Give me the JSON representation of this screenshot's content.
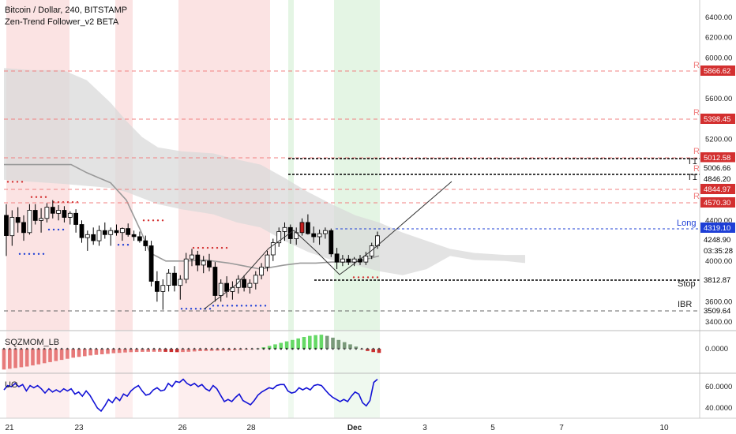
{
  "header": {
    "title": "Bitcoin / Dollar, 240, BITSTAMP",
    "indicator": "Zen-Trend Follower_v2 BETA"
  },
  "colors": {
    "up_candle": "#ffffff",
    "down_candle": "#000000",
    "up_candle_highlight": "#1a7a1a",
    "down_candle_highlight": "#c41e1e",
    "cloud": "#d9d9d9",
    "resistance_line": "#f08080",
    "resistance_badge": "#d32f2f",
    "long_line": "#1e3fd6",
    "stop_line": "#000000",
    "uo_line": "#1212d6",
    "mom_positive": "#7fe07f",
    "mom_negative": "#e05050",
    "red_zone": "#fbe3e3",
    "green_zone": "#e4f5e4"
  },
  "chart_data": [
    {
      "type": "candlestick",
      "title": "Bitcoin / Dollar, 240, BITSTAMP",
      "y_axis": {
        "ylim": [
          3300,
          6700
        ],
        "ticks": [
          6400,
          6200,
          6000,
          5800,
          5600,
          5400,
          5200,
          5000,
          4800,
          4600,
          4400,
          4200,
          4000,
          3800,
          3600,
          3400
        ],
        "tick_labels": [
          "6400.00",
          "6200.00",
          "6000.00",
          "5800.00",
          "5600.00",
          "5400.00",
          "5200.00",
          "5000.00",
          "4800.00",
          "4600.00",
          "4400.00",
          "4200.00",
          "4000.00",
          "3800.00",
          "3600.00",
          "3400.00"
        ]
      },
      "x_axis": {
        "tick_labels": [
          "21",
          "23",
          "26",
          "28",
          "Dec",
          "3",
          "5",
          "7",
          "10"
        ]
      },
      "levels": [
        {
          "label": "5866.62",
          "value": 5866.62,
          "tag": "R",
          "kind": "resistance"
        },
        {
          "label": "5398.45",
          "value": 5398.45,
          "tag": "R",
          "kind": "resistance"
        },
        {
          "label": "5012.58",
          "value": 5012.58,
          "tag": "R",
          "kind": "resistance"
        },
        {
          "label": "5006.66",
          "value": 5006.66,
          "tag": "T1",
          "kind": "target"
        },
        {
          "label": "4846.20",
          "value": 4846.2,
          "tag": "T1",
          "kind": "target"
        },
        {
          "label": "4844.97",
          "value": 4844.97,
          "tag": "R",
          "kind": "resistance"
        },
        {
          "label": "4570.30",
          "value": 4570.3,
          "tag": "R",
          "kind": "resistance"
        },
        {
          "label": "4319.10",
          "value": 4319.1,
          "tag": "Long",
          "kind": "entry"
        },
        {
          "label": "4248.90",
          "value": 4248.9,
          "tag": "",
          "kind": "price"
        },
        {
          "label": "03:35:28",
          "value": 4150,
          "tag": "",
          "kind": "countdown"
        },
        {
          "label": "3812.87",
          "value": 3812.87,
          "tag": "Stop",
          "kind": "stop"
        },
        {
          "label": "3509.64",
          "value": 3509.64,
          "tag": "IBR",
          "kind": "ibr"
        }
      ],
      "candles": [
        {
          "o": 4450,
          "h": 4560,
          "l": 4050,
          "c": 4250
        },
        {
          "o": 4250,
          "h": 4500,
          "l": 4150,
          "c": 4430
        },
        {
          "o": 4430,
          "h": 4530,
          "l": 4280,
          "c": 4380
        },
        {
          "o": 4380,
          "h": 4450,
          "l": 4200,
          "c": 4280
        },
        {
          "o": 4280,
          "h": 4560,
          "l": 4260,
          "c": 4500
        },
        {
          "o": 4500,
          "h": 4560,
          "l": 4360,
          "c": 4400
        },
        {
          "o": 4400,
          "h": 4520,
          "l": 4280,
          "c": 4420
        },
        {
          "o": 4420,
          "h": 4570,
          "l": 4380,
          "c": 4530
        },
        {
          "o": 4530,
          "h": 4600,
          "l": 4420,
          "c": 4470
        },
        {
          "o": 4470,
          "h": 4550,
          "l": 4400,
          "c": 4500
        },
        {
          "o": 4500,
          "h": 4540,
          "l": 4380,
          "c": 4430
        },
        {
          "o": 4430,
          "h": 4490,
          "l": 4360,
          "c": 4470
        },
        {
          "o": 4470,
          "h": 4510,
          "l": 4280,
          "c": 4360
        },
        {
          "o": 4360,
          "h": 4400,
          "l": 4180,
          "c": 4230
        },
        {
          "o": 4230,
          "h": 4300,
          "l": 4100,
          "c": 4260
        },
        {
          "o": 4260,
          "h": 4330,
          "l": 4160,
          "c": 4200
        },
        {
          "o": 4200,
          "h": 4350,
          "l": 4150,
          "c": 4300
        },
        {
          "o": 4300,
          "h": 4380,
          "l": 4220,
          "c": 4260
        },
        {
          "o": 4260,
          "h": 4330,
          "l": 4150,
          "c": 4300
        },
        {
          "o": 4300,
          "h": 4360,
          "l": 4250,
          "c": 4280
        },
        {
          "o": 4280,
          "h": 4330,
          "l": 4200,
          "c": 4320
        },
        {
          "o": 4320,
          "h": 4370,
          "l": 4240,
          "c": 4260
        },
        {
          "o": 4260,
          "h": 4300,
          "l": 4200,
          "c": 4240
        },
        {
          "o": 4240,
          "h": 4290,
          "l": 4180,
          "c": 4200
        },
        {
          "o": 4200,
          "h": 4250,
          "l": 4100,
          "c": 4150
        },
        {
          "o": 4150,
          "h": 4200,
          "l": 3750,
          "c": 3800
        },
        {
          "o": 3800,
          "h": 3900,
          "l": 3600,
          "c": 3700
        },
        {
          "o": 3700,
          "h": 3820,
          "l": 3520,
          "c": 3760
        },
        {
          "o": 3760,
          "h": 3920,
          "l": 3700,
          "c": 3880
        },
        {
          "o": 3880,
          "h": 3950,
          "l": 3700,
          "c": 3760
        },
        {
          "o": 3760,
          "h": 3860,
          "l": 3620,
          "c": 3820
        },
        {
          "o": 3820,
          "h": 4080,
          "l": 3780,
          "c": 4020
        },
        {
          "o": 4020,
          "h": 4120,
          "l": 3950,
          "c": 4060
        },
        {
          "o": 4060,
          "h": 4100,
          "l": 3900,
          "c": 3960
        },
        {
          "o": 3960,
          "h": 4050,
          "l": 3880,
          "c": 4000
        },
        {
          "o": 4000,
          "h": 4070,
          "l": 3900,
          "c": 3940
        },
        {
          "o": 3940,
          "h": 3990,
          "l": 3600,
          "c": 3660
        },
        {
          "o": 3660,
          "h": 3820,
          "l": 3600,
          "c": 3780
        },
        {
          "o": 3780,
          "h": 3850,
          "l": 3640,
          "c": 3700
        },
        {
          "o": 3700,
          "h": 3800,
          "l": 3620,
          "c": 3740
        },
        {
          "o": 3740,
          "h": 3860,
          "l": 3680,
          "c": 3820
        },
        {
          "o": 3820,
          "h": 3860,
          "l": 3700,
          "c": 3740
        },
        {
          "o": 3740,
          "h": 3820,
          "l": 3680,
          "c": 3780
        },
        {
          "o": 3780,
          "h": 3900,
          "l": 3720,
          "c": 3860
        },
        {
          "o": 3860,
          "h": 3980,
          "l": 3820,
          "c": 3940
        },
        {
          "o": 3940,
          "h": 4100,
          "l": 3900,
          "c": 4060
        },
        {
          "o": 4060,
          "h": 4220,
          "l": 4000,
          "c": 4180
        },
        {
          "o": 4180,
          "h": 4330,
          "l": 4140,
          "c": 4290
        },
        {
          "o": 4290,
          "h": 4380,
          "l": 4200,
          "c": 4330
        },
        {
          "o": 4330,
          "h": 4360,
          "l": 4170,
          "c": 4220
        },
        {
          "o": 4220,
          "h": 4330,
          "l": 4160,
          "c": 4280
        },
        {
          "o": 4280,
          "h": 4420,
          "l": 4250,
          "c": 4380
        },
        {
          "o": 4380,
          "h": 4460,
          "l": 4260,
          "c": 4270
        },
        {
          "o": 4270,
          "h": 4340,
          "l": 4180,
          "c": 4240
        },
        {
          "o": 4240,
          "h": 4310,
          "l": 4160,
          "c": 4270
        },
        {
          "o": 4270,
          "h": 4330,
          "l": 4220,
          "c": 4300
        },
        {
          "o": 4300,
          "h": 4320,
          "l": 4040,
          "c": 4070
        },
        {
          "o": 4070,
          "h": 4130,
          "l": 3920,
          "c": 3990
        },
        {
          "o": 3990,
          "h": 4060,
          "l": 3950,
          "c": 4020
        },
        {
          "o": 4020,
          "h": 4060,
          "l": 3960,
          "c": 3990
        },
        {
          "o": 3990,
          "h": 4040,
          "l": 3950,
          "c": 4020
        },
        {
          "o": 4020,
          "h": 4060,
          "l": 3960,
          "c": 3990
        },
        {
          "o": 3990,
          "h": 4090,
          "l": 3960,
          "c": 4050
        },
        {
          "o": 4050,
          "h": 4180,
          "l": 4020,
          "c": 4150
        },
        {
          "o": 4150,
          "h": 4290,
          "l": 4120,
          "c": 4248.9
        }
      ]
    },
    {
      "type": "bar",
      "title": "SQZMOM_LB",
      "y_axis": {
        "ticks": [
          0
        ],
        "tick_labels": [
          "0.0000"
        ],
        "ylim": [
          -320,
          250
        ]
      },
      "values": [
        -280,
        -270,
        -260,
        -250,
        -240,
        -225,
        -210,
        -195,
        -180,
        -165,
        -150,
        -135,
        -120,
        -110,
        -100,
        -90,
        -82,
        -75,
        -68,
        -60,
        -55,
        -50,
        -46,
        -44,
        -42,
        -40,
        -40,
        -40,
        -42,
        -44,
        -46,
        -44,
        -40,
        -36,
        -32,
        -30,
        -28,
        -26,
        -24,
        -22,
        -20,
        -16,
        -10,
        -4,
        4,
        20,
        40,
        60,
        80,
        100,
        120,
        140,
        160,
        175,
        185,
        190,
        175,
        150,
        120,
        90,
        60,
        30,
        -10,
        -30,
        -45,
        -55
      ]
    },
    {
      "type": "line",
      "title": "UO",
      "y_axis": {
        "ticks": [
          60,
          40
        ],
        "tick_labels": [
          "60.0000",
          "40.0000"
        ],
        "ylim": [
          34,
          69
        ]
      },
      "values": [
        57,
        61,
        60,
        63,
        60,
        62,
        56,
        61,
        59,
        61,
        58,
        54,
        58,
        55,
        57,
        55,
        58,
        56,
        58,
        53,
        55,
        51,
        56,
        52,
        46,
        40,
        37,
        42,
        48,
        45,
        50,
        47,
        53,
        51,
        56,
        59,
        61,
        56,
        52,
        53,
        57,
        59,
        56,
        57,
        63,
        60,
        65,
        64,
        67,
        63,
        61,
        63,
        60,
        62,
        58,
        56,
        61,
        58,
        52,
        46,
        48,
        46,
        50,
        53,
        47,
        45,
        43,
        47,
        52,
        55,
        57,
        59,
        58,
        61,
        62,
        62,
        56,
        54,
        55,
        59,
        57,
        59,
        57,
        61,
        62,
        61,
        57,
        53,
        50,
        48,
        46,
        48,
        46,
        51,
        55,
        53,
        45,
        42,
        47,
        64,
        67
      ]
    }
  ]
}
